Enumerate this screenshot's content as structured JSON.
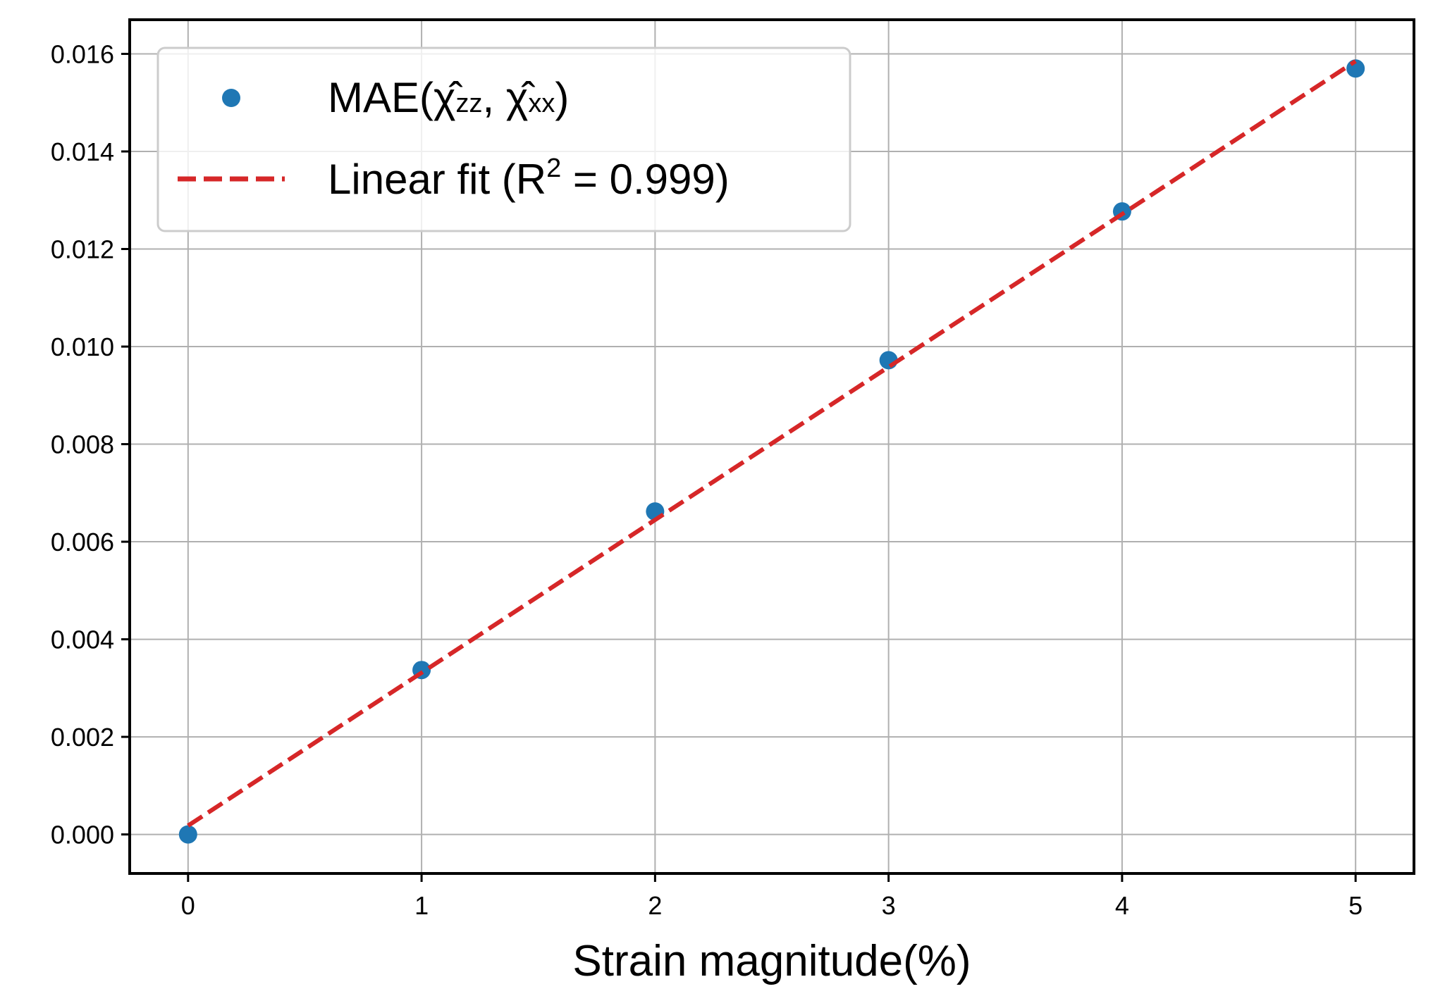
{
  "chart_data": {
    "type": "scatter",
    "xlabel": "Strain magnitude(%)",
    "ylabel": "",
    "xlim": [
      -0.25,
      5.25
    ],
    "ylim": [
      -0.0008,
      0.0167
    ],
    "xticks": [
      0,
      1,
      2,
      3,
      4,
      5
    ],
    "xtick_labels": [
      "0",
      "1",
      "2",
      "3",
      "4",
      "5"
    ],
    "yticks": [
      0.0,
      0.002,
      0.004,
      0.006,
      0.008,
      0.01,
      0.012,
      0.014,
      0.016
    ],
    "ytick_labels": [
      "0.000",
      "0.002",
      "0.004",
      "0.006",
      "0.008",
      "0.010",
      "0.012",
      "0.014",
      "0.016"
    ],
    "grid": true,
    "legend_position": "top-left",
    "series": [
      {
        "name": "MAE(χ̂zz, χ̂xx)",
        "kind": "scatter",
        "color": "#1f77b4",
        "x": [
          0,
          1,
          2,
          3,
          4,
          5
        ],
        "y": [
          0.0,
          0.00337,
          0.00662,
          0.00972,
          0.01277,
          0.0157
        ]
      },
      {
        "name": "Linear fit (R² = 0.999)",
        "kind": "line",
        "style": "dashed",
        "color": "#d62728",
        "x": [
          0,
          5
        ],
        "y": [
          0.00018,
          0.01585
        ]
      }
    ],
    "legend": {
      "scatter_label_prefix": "MAE(",
      "scatter_label_chi": "χ̂",
      "scatter_label_sub1": "zz",
      "scatter_label_sep": ", ",
      "scatter_label_sub2": "xx",
      "scatter_label_suffix": ")",
      "fit_label_prefix": "Linear fit (R",
      "fit_label_sup": "2",
      "fit_label_suffix": " = 0.999)"
    }
  }
}
